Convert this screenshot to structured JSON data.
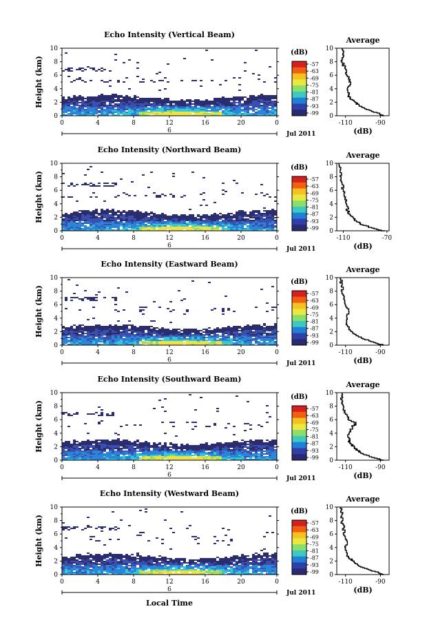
{
  "figure": {
    "xlabel_bottom": "Local Time",
    "date_label": "Jul 2011",
    "day_label": "6",
    "colorbar_unit": "(dB)",
    "colorbar_ticks": [
      "-57",
      "-63",
      "-69",
      "-75",
      "-81",
      "-87",
      "-93",
      "-99"
    ],
    "colorbar_colors": [
      "#d62020",
      "#f06010",
      "#f6c020",
      "#e8e840",
      "#8ade6a",
      "#3ec8c0",
      "#2080d8",
      "#3040a8",
      "#2a2a70"
    ],
    "heat_colors": [
      "#2b2c6e",
      "#3a4fae",
      "#2a86d8",
      "#38c6d4",
      "#8edc6a",
      "#ece24a"
    ]
  },
  "chart_data": [
    {
      "type": "heatmap",
      "title": "Echo Intensity (Vertical Beam)",
      "ylabel": "Height (km)",
      "xlim": [
        0,
        24
      ],
      "ylim": [
        0,
        10
      ],
      "xticks": [
        "0",
        "4",
        "8",
        "12",
        "16",
        "20",
        "0"
      ],
      "yticks": [
        "0",
        "2",
        "4",
        "6",
        "8",
        "10"
      ],
      "colorbar": {
        "unit": "(dB)",
        "range": [
          -99,
          -57
        ]
      },
      "average_profile": {
        "title": "Average",
        "xlabel": "(dB)",
        "xticks": [
          "-110",
          "-90"
        ],
        "xlim": [
          -115,
          -85
        ],
        "height": [
          0,
          0.5,
          1,
          1.5,
          2,
          2.5,
          3,
          4,
          5,
          6,
          7,
          8,
          9,
          10
        ],
        "values": [
          -88,
          -92,
          -98,
          -102,
          -104,
          -107,
          -108,
          -109,
          -107,
          -109,
          -110,
          -112,
          -111,
          -112
        ]
      }
    },
    {
      "type": "heatmap",
      "title": "Echo Intensity (Northward Beam)",
      "ylabel": "Height (km)",
      "xlim": [
        0,
        24
      ],
      "ylim": [
        0,
        10
      ],
      "xticks": [
        "0",
        "4",
        "8",
        "12",
        "16",
        "20",
        "0"
      ],
      "yticks": [
        "0",
        "2",
        "4",
        "6",
        "8",
        "10"
      ],
      "colorbar": {
        "unit": "(dB)",
        "range": [
          -99,
          -57
        ]
      },
      "average_profile": {
        "title": "Average",
        "xlabel": "(dB)",
        "xticks": [
          "-110",
          "-70"
        ],
        "xlim": [
          -116,
          -68
        ],
        "height": [
          0,
          0.5,
          1,
          1.5,
          2,
          2.5,
          3,
          4,
          5,
          6,
          7,
          8,
          9,
          10
        ],
        "values": [
          -72,
          -84,
          -94,
          -98,
          -101,
          -104,
          -106,
          -107,
          -108,
          -110,
          -111,
          -112,
          -113,
          -114
        ]
      }
    },
    {
      "type": "heatmap",
      "title": "Echo Intensity (Eastward Beam)",
      "ylabel": "Height (km)",
      "xlim": [
        0,
        24
      ],
      "ylim": [
        0,
        10
      ],
      "xticks": [
        "0",
        "4",
        "8",
        "12",
        "16",
        "20",
        "0"
      ],
      "yticks": [
        "0",
        "2",
        "4",
        "6",
        "8",
        "10"
      ],
      "colorbar": {
        "unit": "(dB)",
        "range": [
          -99,
          -57
        ]
      },
      "average_profile": {
        "title": "Average",
        "xlabel": "(dB)",
        "xticks": [
          "-110",
          "-90"
        ],
        "xlim": [
          -115,
          -85
        ],
        "height": [
          0,
          0.5,
          1,
          1.5,
          2,
          2.5,
          3,
          4,
          5,
          6,
          7,
          8,
          9,
          10
        ],
        "values": [
          -88,
          -94,
          -100,
          -104,
          -106,
          -108,
          -109,
          -109,
          -108,
          -110,
          -111,
          -112,
          -112,
          -113
        ]
      }
    },
    {
      "type": "heatmap",
      "title": "Echo Intensity (Southward Beam)",
      "ylabel": "Height (km)",
      "xlim": [
        0,
        24
      ],
      "ylim": [
        0,
        10
      ],
      "xticks": [
        "0",
        "4",
        "8",
        "12",
        "16",
        "20",
        "0"
      ],
      "yticks": [
        "0",
        "2",
        "4",
        "6",
        "8",
        "10"
      ],
      "colorbar": {
        "unit": "(dB)",
        "range": [
          -99,
          -57
        ]
      },
      "average_profile": {
        "title": "Average",
        "xlabel": "(dB)",
        "xticks": [
          "-110",
          "-90"
        ],
        "xlim": [
          -115,
          -85
        ],
        "height": [
          0,
          0.5,
          1,
          1.5,
          2,
          2.5,
          3,
          4,
          5,
          5.5,
          6,
          7,
          8,
          9,
          10
        ],
        "values": [
          -88,
          -95,
          -100,
          -103,
          -105,
          -107,
          -108,
          -108,
          -106,
          -104,
          -108,
          -110,
          -111,
          -112,
          -112
        ]
      }
    },
    {
      "type": "heatmap",
      "title": "Echo Intensity (Westward Beam)",
      "ylabel": "Height (km)",
      "xlim": [
        0,
        24
      ],
      "ylim": [
        0,
        10
      ],
      "xticks": [
        "0",
        "4",
        "8",
        "12",
        "16",
        "20",
        "0"
      ],
      "yticks": [
        "0",
        "2",
        "4",
        "6",
        "8",
        "10"
      ],
      "colorbar": {
        "unit": "(dB)",
        "range": [
          -99,
          -57
        ]
      },
      "average_profile": {
        "title": "Average",
        "xlabel": "(dB)",
        "xticks": [
          "-110",
          "-90"
        ],
        "xlim": [
          -115,
          -85
        ],
        "height": [
          0,
          0.5,
          1,
          1.5,
          2,
          2.5,
          3,
          4,
          5,
          6,
          7,
          8,
          9,
          10
        ],
        "values": [
          -88,
          -93,
          -99,
          -103,
          -105,
          -108,
          -109,
          -110,
          -109,
          -111,
          -111,
          -112,
          -112,
          -113
        ]
      }
    }
  ]
}
